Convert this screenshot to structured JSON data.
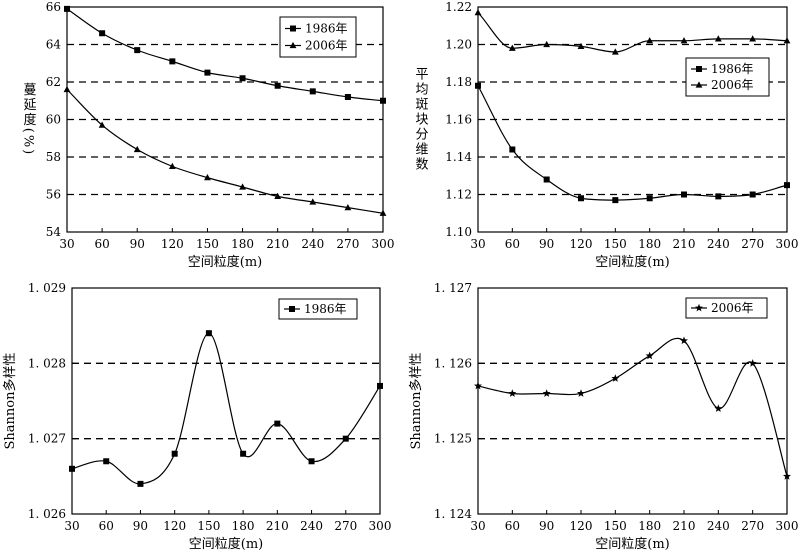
{
  "chart_data": [
    {
      "type": "line",
      "xlabel": "空间粒度(m)",
      "ylabel": "蔓延度(%)",
      "x": [
        30,
        60,
        90,
        120,
        150,
        180,
        210,
        240,
        270,
        300
      ],
      "xlim": [
        30,
        300
      ],
      "ylim": [
        54,
        66
      ],
      "yticks": [
        54,
        56,
        58,
        60,
        62,
        64,
        66
      ],
      "ytick_labels": [
        "54",
        "56",
        "58",
        "60",
        "62",
        "64",
        "66"
      ],
      "grid": "dashed horizontal",
      "legend_position": "top-right",
      "series": [
        {
          "name": "1986年",
          "marker": "square",
          "values": [
            65.9,
            64.6,
            63.7,
            63.1,
            62.5,
            62.2,
            61.8,
            61.5,
            61.2,
            61.0
          ]
        },
        {
          "name": "2006年",
          "marker": "triangle",
          "values": [
            61.6,
            59.7,
            58.4,
            57.5,
            56.9,
            56.4,
            55.9,
            55.6,
            55.3,
            55.0
          ]
        }
      ]
    },
    {
      "type": "line",
      "xlabel": "空间粒度(m)",
      "ylabel": "平均斑块分维数",
      "x": [
        30,
        60,
        90,
        120,
        150,
        180,
        210,
        240,
        270,
        300
      ],
      "xlim": [
        30,
        300
      ],
      "ylim": [
        1.1,
        1.22
      ],
      "yticks": [
        1.1,
        1.12,
        1.14,
        1.16,
        1.18,
        1.2,
        1.22
      ],
      "ytick_labels": [
        "1.10",
        "1.12",
        "1.14",
        "1.16",
        "1.18",
        "1.20",
        "1.22"
      ],
      "grid": "dashed horizontal",
      "legend_position": "right",
      "series": [
        {
          "name": "1986年",
          "marker": "square",
          "values": [
            1.178,
            1.144,
            1.128,
            1.118,
            1.117,
            1.118,
            1.12,
            1.119,
            1.12,
            1.125
          ]
        },
        {
          "name": "2006年",
          "marker": "triangle",
          "values": [
            1.217,
            1.198,
            1.2,
            1.199,
            1.196,
            1.202,
            1.202,
            1.203,
            1.203,
            1.202
          ]
        }
      ]
    },
    {
      "type": "line",
      "xlabel": "空间粒度(m)",
      "ylabel": "Shannon多样性",
      "x": [
        30,
        60,
        90,
        120,
        150,
        180,
        210,
        240,
        270,
        300
      ],
      "xlim": [
        30,
        300
      ],
      "ylim": [
        1.026,
        1.029
      ],
      "yticks": [
        1.026,
        1.027,
        1.028,
        1.029
      ],
      "ytick_labels": [
        "1. 026",
        "1. 027",
        "1. 028",
        "1. 029"
      ],
      "grid": "dashed horizontal",
      "legend_position": "top-right",
      "series": [
        {
          "name": "1986年",
          "marker": "square",
          "values": [
            1.0266,
            1.0267,
            1.0264,
            1.0268,
            1.0284,
            1.0268,
            1.0272,
            1.0267,
            1.027,
            1.0277
          ]
        }
      ]
    },
    {
      "type": "line",
      "xlabel": "空间粒度(m)",
      "ylabel": "Shannon多样性",
      "x": [
        30,
        60,
        90,
        120,
        150,
        180,
        210,
        240,
        270,
        300
      ],
      "xlim": [
        30,
        300
      ],
      "ylim": [
        1.124,
        1.127
      ],
      "yticks": [
        1.124,
        1.125,
        1.126,
        1.127
      ],
      "ytick_labels": [
        "1. 124",
        "1. 125",
        "1. 126",
        "1. 127"
      ],
      "grid": "dashed horizontal",
      "legend_position": "top-right",
      "series": [
        {
          "name": "2006年",
          "marker": "star",
          "values": [
            1.1257,
            1.1256,
            1.1256,
            1.1256,
            1.1258,
            1.1261,
            1.1263,
            1.1254,
            1.126,
            1.1245
          ]
        }
      ]
    }
  ]
}
